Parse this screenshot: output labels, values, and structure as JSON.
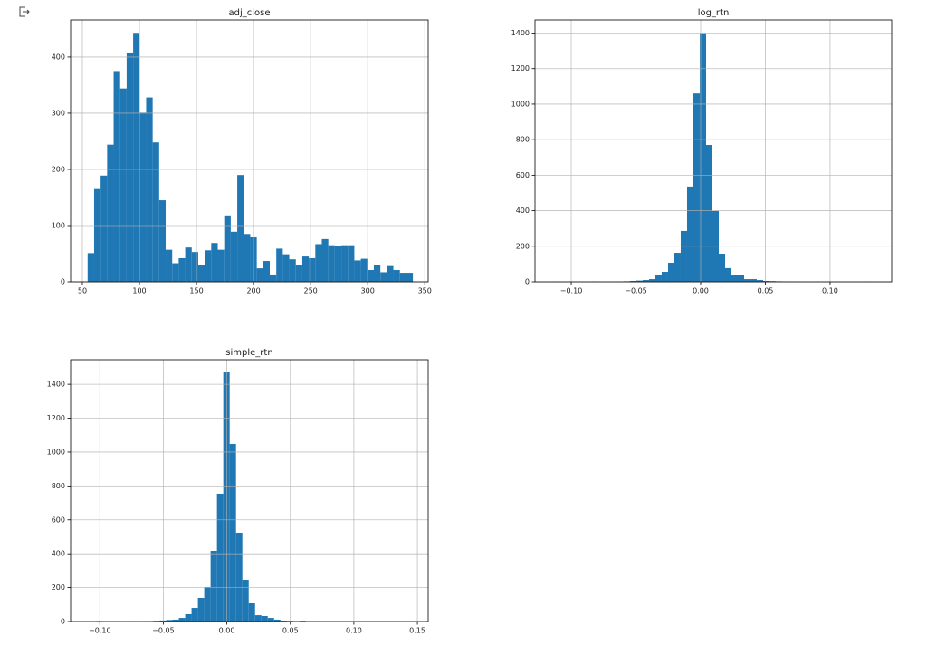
{
  "chart_data": [
    {
      "type": "histogram",
      "title": "adj_close",
      "color": "#1f77b4",
      "grid": true,
      "bins": [
        54.6,
        60.3,
        66.0,
        71.7,
        77.4,
        83.1,
        88.8,
        94.5,
        100.2,
        105.9,
        111.6,
        117.3,
        123.0,
        128.7,
        134.4,
        140.1,
        145.8,
        151.5,
        157.2,
        162.9,
        168.6,
        174.3,
        180.0,
        185.7,
        191.4,
        197.1,
        202.8,
        208.5,
        214.2,
        219.9,
        225.6,
        231.3,
        237.0,
        242.7,
        248.4,
        254.1,
        259.8,
        265.5,
        271.2,
        276.9,
        282.6,
        288.3,
        294.0,
        299.7,
        305.4,
        311.1,
        316.8,
        322.5,
        328.2,
        333.9,
        339.6
      ],
      "values": [
        51,
        165,
        189,
        244,
        375,
        344,
        408,
        443,
        301,
        328,
        248,
        145,
        57,
        33,
        42,
        61,
        53,
        30,
        56,
        69,
        57,
        118,
        89,
        190,
        85,
        79,
        24,
        37,
        13,
        59,
        49,
        40,
        29,
        45,
        42,
        67,
        76,
        65,
        64,
        65,
        65,
        38,
        41,
        21,
        29,
        17,
        28,
        21,
        16,
        16
      ],
      "xlim": [
        39.7,
        353
      ],
      "xticks": [
        50,
        100,
        150,
        200,
        250,
        300,
        350
      ],
      "ylim": [
        0,
        466
      ],
      "yticks": [
        0,
        100,
        200,
        300,
        400
      ]
    },
    {
      "type": "histogram",
      "title": "log_rtn",
      "color": "#1f77b4",
      "grid": true,
      "bins": [
        -0.1134,
        -0.1085,
        -0.1036,
        -0.0987,
        -0.0938,
        -0.0889,
        -0.084,
        -0.0791,
        -0.0742,
        -0.0693,
        -0.0644,
        -0.0595,
        -0.0546,
        -0.0497,
        -0.0448,
        -0.0399,
        -0.035,
        -0.0301,
        -0.0252,
        -0.0203,
        -0.0154,
        -0.0105,
        -0.0056,
        -0.0007,
        0.0042,
        0.0091,
        0.014,
        0.0189,
        0.0238,
        0.0287,
        0.0336,
        0.0385,
        0.0434,
        0.0483,
        0.0532,
        0.0581,
        0.063,
        0.0679,
        0.0728,
        0.0777,
        0.0826,
        0.0875,
        0.0924,
        0.0973,
        0.1022,
        0.1071,
        0.112,
        0.1169,
        0.1218,
        0.1267,
        0.1316
      ],
      "values": [
        1,
        0,
        0,
        0,
        0,
        0,
        2,
        0,
        0,
        1,
        1,
        3,
        5,
        7,
        10,
        15,
        36,
        56,
        107,
        163,
        286,
        536,
        1060,
        1400,
        770,
        398,
        158,
        77,
        36,
        36,
        15,
        15,
        10,
        5,
        4,
        3,
        2,
        1,
        1,
        0,
        0,
        0,
        0,
        0,
        0,
        0,
        0,
        0,
        0,
        1
      ],
      "xlim": [
        -0.128,
        0.1476
      ],
      "xticks": [
        {
          "value": -0.1,
          "label": "−0.10"
        },
        {
          "value": -0.05,
          "label": "−0.05"
        },
        {
          "value": 0,
          "label": "0.00"
        },
        {
          "value": 0.05,
          "label": "0.05"
        },
        {
          "value": 0.1,
          "label": "0.10"
        }
      ],
      "ylim": [
        0,
        1474
      ],
      "yticks": [
        0,
        200,
        400,
        600,
        800,
        1000,
        1200,
        1400
      ]
    },
    {
      "type": "histogram",
      "title": "simple_rtn",
      "color": "#1f77b4",
      "grid": true,
      "bins": [
        -0.1028,
        -0.0978,
        -0.0928,
        -0.0878,
        -0.0828,
        -0.0778,
        -0.0728,
        -0.0678,
        -0.0628,
        -0.0578,
        -0.0528,
        -0.0478,
        -0.0428,
        -0.0378,
        -0.0328,
        -0.0278,
        -0.0228,
        -0.0178,
        -0.0128,
        -0.0078,
        -0.0028,
        0.0022,
        0.0072,
        0.0122,
        0.0172,
        0.0222,
        0.0272,
        0.0322,
        0.0372,
        0.0422,
        0.0472,
        0.0522,
        0.0572,
        0.0622,
        0.0672,
        0.0722,
        0.0772,
        0.0822,
        0.0872,
        0.0922,
        0.0972,
        0.1022,
        0.1072,
        0.1122,
        0.1172,
        0.1222,
        0.1272,
        0.1322,
        0.1372,
        0.1422,
        0.1472
      ],
      "values": [
        3,
        0,
        0,
        0,
        0,
        2,
        0,
        2,
        2,
        4,
        6,
        9,
        11,
        21,
        43,
        80,
        139,
        203,
        417,
        754,
        1470,
        1048,
        524,
        246,
        112,
        37,
        32,
        21,
        11,
        5,
        4,
        2,
        4,
        0,
        1,
        0,
        0,
        0,
        0,
        0,
        0,
        0,
        0,
        0,
        0,
        0,
        0,
        0,
        0,
        1
      ],
      "xlim": [
        -0.123,
        0.1585
      ],
      "xticks": [
        {
          "value": -0.1,
          "label": "−0.10"
        },
        {
          "value": -0.05,
          "label": "−0.05"
        },
        {
          "value": 0,
          "label": "0.00"
        },
        {
          "value": 0.05,
          "label": "0.05"
        },
        {
          "value": 0.1,
          "label": "0.10"
        },
        {
          "value": 0.15,
          "label": "0.15"
        }
      ],
      "ylim": [
        0,
        1545
      ],
      "yticks": [
        0,
        200,
        400,
        600,
        800,
        1000,
        1200,
        1400
      ]
    }
  ]
}
